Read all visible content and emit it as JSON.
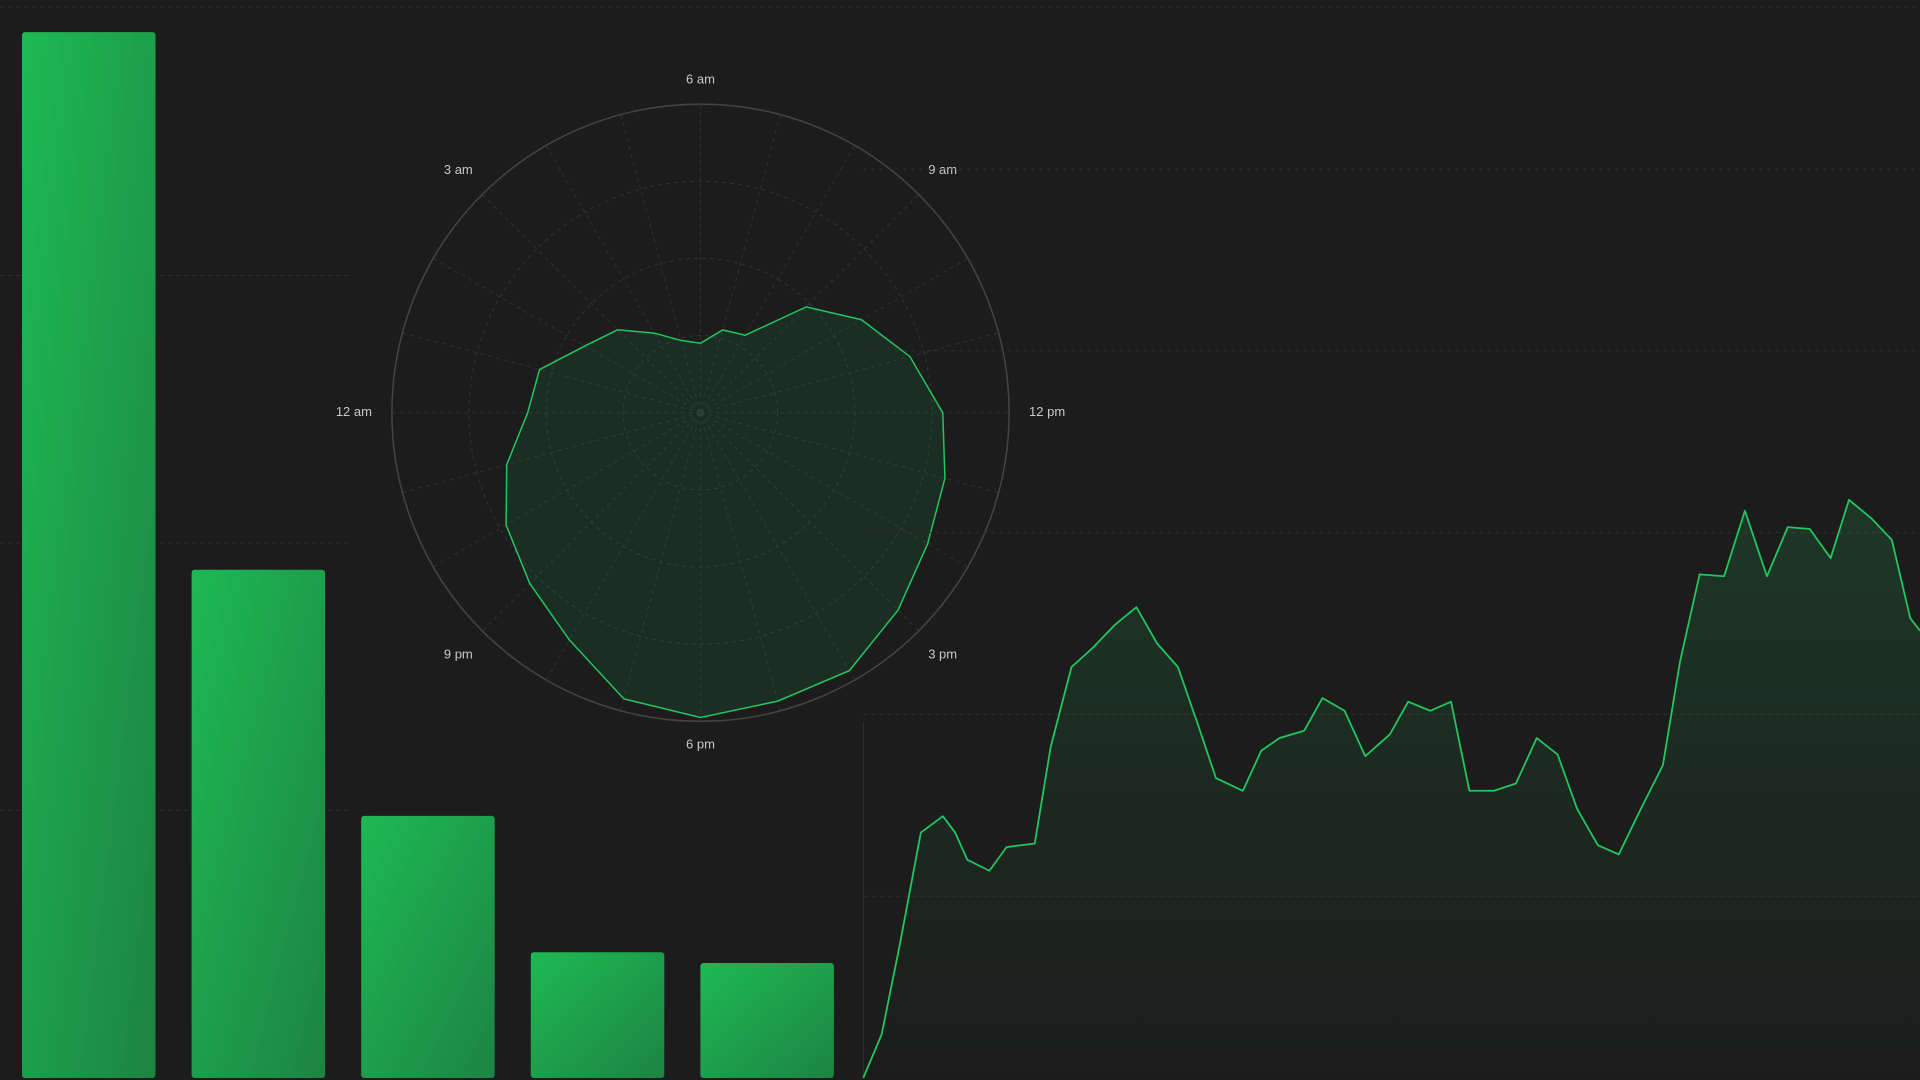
{
  "chart_data": [
    {
      "type": "bar",
      "values": [
        3.91,
        1.9,
        0.98,
        0.47,
        0.43
      ],
      "color": "#1db954",
      "ylim": [
        0,
        4
      ],
      "yticks": [
        0,
        1,
        2,
        3,
        4
      ],
      "grid": true
    },
    {
      "type": "radar",
      "categories": [
        "6 am",
        null,
        null,
        "9 am",
        null,
        null,
        "12 pm",
        null,
        null,
        "3 pm",
        null,
        null,
        "6 pm",
        null,
        null,
        "9 pm",
        null,
        null,
        "12 am",
        null,
        null,
        "3 am",
        null,
        null
      ],
      "values": [
        0.9,
        1.11,
        1.16,
        1.94,
        2.41,
        2.81,
        3.14,
        3.28,
        3.4,
        3.62,
        3.86,
        3.87,
        3.95,
        3.84,
        3.4,
        3.13,
        2.91,
        2.6,
        2.24,
        2.16,
        1.73,
        1.52,
        1.19,
        0.97
      ],
      "color": "#22c55e",
      "ylim": [
        0,
        4
      ],
      "yticks": [
        1,
        2,
        3,
        4
      ],
      "grid": true
    },
    {
      "type": "area",
      "x": [
        0,
        15,
        30,
        47,
        65,
        75,
        85,
        103,
        117,
        140,
        153,
        170,
        188,
        205,
        223,
        240,
        257,
        273,
        288,
        310,
        325,
        340,
        360,
        375,
        393,
        410,
        430,
        445,
        463,
        480,
        495,
        515,
        533,
        550,
        567,
        583,
        600,
        617,
        635,
        653,
        667,
        683,
        703,
        720,
        738,
        755,
        773,
        790,
        805,
        823,
        840,
        855,
        863
      ],
      "values": [
        0,
        0.24,
        0.74,
        1.35,
        1.44,
        1.35,
        1.2,
        1.14,
        1.27,
        1.29,
        1.82,
        2.26,
        2.37,
        2.49,
        2.59,
        2.39,
        2.26,
        1.95,
        1.65,
        1.58,
        1.8,
        1.87,
        1.91,
        2.09,
        2.02,
        1.77,
        1.89,
        2.07,
        2.02,
        2.07,
        1.58,
        1.58,
        1.62,
        1.87,
        1.78,
        1.48,
        1.28,
        1.23,
        1.48,
        1.72,
        2.29,
        2.77,
        2.76,
        3.12,
        2.76,
        3.03,
        3.02,
        2.86,
        3.18,
        3.08,
        2.96,
        2.53,
        2.46
      ],
      "color": "#22c55e",
      "xlim": [
        0,
        863
      ],
      "ylim": [
        0,
        6
      ],
      "yticks": [
        0,
        1,
        2,
        3,
        4,
        5
      ],
      "grid": true
    }
  ]
}
